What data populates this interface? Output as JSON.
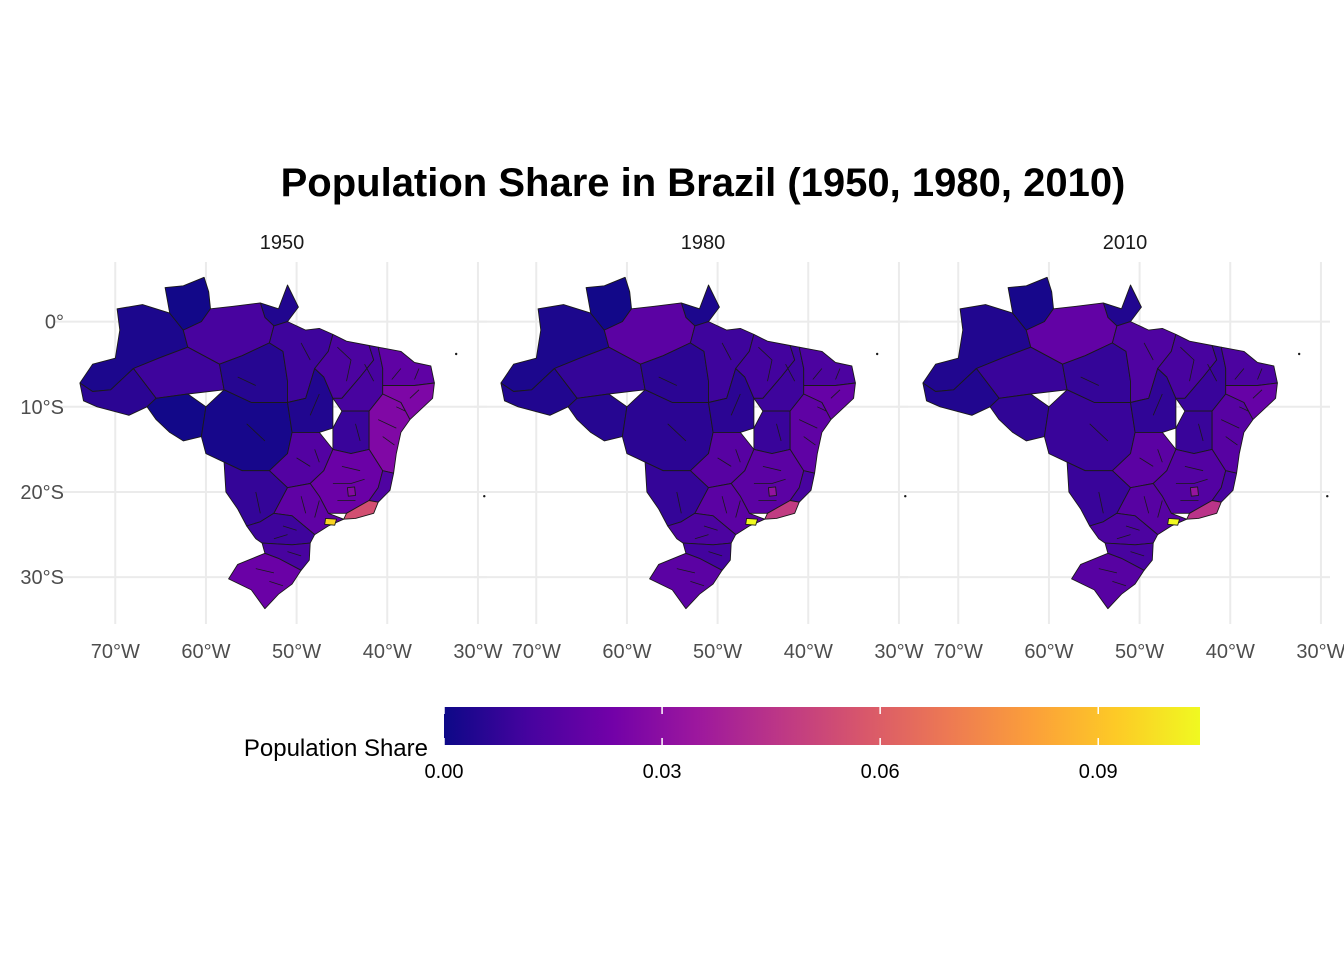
{
  "title": "Population Share in Brazil (1950, 1980, 2010)",
  "chart_data": {
    "type": "choropleth",
    "title": "Population Share in Brazil (1950, 1980, 2010)",
    "facets": [
      "1950",
      "1980",
      "2010"
    ],
    "x_axis": {
      "ticks": [
        "70°W",
        "60°W",
        "50°W",
        "40°W",
        "30°W"
      ],
      "tick_values": [
        -70,
        -60,
        -50,
        -40,
        -30
      ],
      "range": [
        -74,
        -29
      ]
    },
    "y_axis": {
      "ticks": [
        "0°",
        "10°S",
        "20°S",
        "30°S"
      ],
      "tick_values": [
        0,
        -10,
        -20,
        -30
      ],
      "range": [
        -35.5,
        7
      ]
    },
    "legend": {
      "title": "Population Share",
      "position": "bottom",
      "ticks": [
        "0.00",
        "0.03",
        "0.06",
        "0.09"
      ],
      "tick_values": [
        0.0,
        0.03,
        0.06,
        0.09
      ],
      "range": [
        0.0,
        0.104
      ],
      "palette": [
        "#0d0887",
        "#46039f",
        "#7201a8",
        "#9c179e",
        "#bd3786",
        "#d8576b",
        "#ed7953",
        "#fb9f3a",
        "#fdca26",
        "#f0f921"
      ]
    },
    "grid": true,
    "panels": [
      {
        "label": "1950",
        "region_values": {
          "north_west": 0.003,
          "roraima": 0.001,
          "amapa": 0.004,
          "para_west": 0.012,
          "amazonas_south": 0.01,
          "para_central": 0.005,
          "para_east": 0.01,
          "acre": 0.006,
          "rondonia": 0.001,
          "mato_grosso": 0.002,
          "tocantins": 0.004,
          "maranhao": 0.013,
          "piaui": 0.012,
          "northeast_coast": 0.018,
          "pernambuco": 0.026,
          "bahia_west": 0.009,
          "bahia_east": 0.027,
          "goias": 0.015,
          "mato_grosso_sul": 0.008,
          "minas": 0.021,
          "espirito_santo": 0.014,
          "sao_paulo": 0.018,
          "rio": 0.055,
          "parana": 0.01,
          "santa_catarina": 0.012,
          "rio_grande_sul": 0.021,
          "sp_capital": 0.095,
          "bh": 0.028
        }
      },
      {
        "label": "1980",
        "region_values": {
          "north_west": 0.003,
          "roraima": 0.001,
          "amapa": 0.003,
          "para_west": 0.017,
          "amazonas_south": 0.008,
          "para_central": 0.006,
          "para_east": 0.01,
          "acre": 0.004,
          "rondonia": 0.005,
          "mato_grosso": 0.006,
          "tocantins": 0.006,
          "maranhao": 0.011,
          "piaui": 0.01,
          "northeast_coast": 0.013,
          "pernambuco": 0.02,
          "bahia_west": 0.009,
          "bahia_east": 0.018,
          "goias": 0.016,
          "mato_grosso_sul": 0.008,
          "minas": 0.017,
          "espirito_santo": 0.012,
          "sao_paulo": 0.017,
          "rio": 0.048,
          "parana": 0.013,
          "santa_catarina": 0.011,
          "rio_grande_sul": 0.017,
          "sp_capital": 0.104,
          "bh": 0.032
        }
      },
      {
        "label": "2010",
        "region_values": {
          "north_west": 0.004,
          "roraima": 0.002,
          "amapa": 0.004,
          "para_west": 0.019,
          "amazonas_south": 0.009,
          "para_central": 0.008,
          "para_east": 0.014,
          "acre": 0.004,
          "rondonia": 0.007,
          "mato_grosso": 0.009,
          "tocantins": 0.007,
          "maranhao": 0.012,
          "piaui": 0.009,
          "northeast_coast": 0.013,
          "pernambuco": 0.02,
          "bahia_west": 0.009,
          "bahia_east": 0.016,
          "goias": 0.017,
          "mato_grosso_sul": 0.009,
          "minas": 0.015,
          "espirito_santo": 0.012,
          "sao_paulo": 0.016,
          "rio": 0.045,
          "parana": 0.013,
          "santa_catarina": 0.012,
          "rio_grande_sul": 0.016,
          "sp_capital": 0.104,
          "bh": 0.033
        }
      }
    ]
  }
}
